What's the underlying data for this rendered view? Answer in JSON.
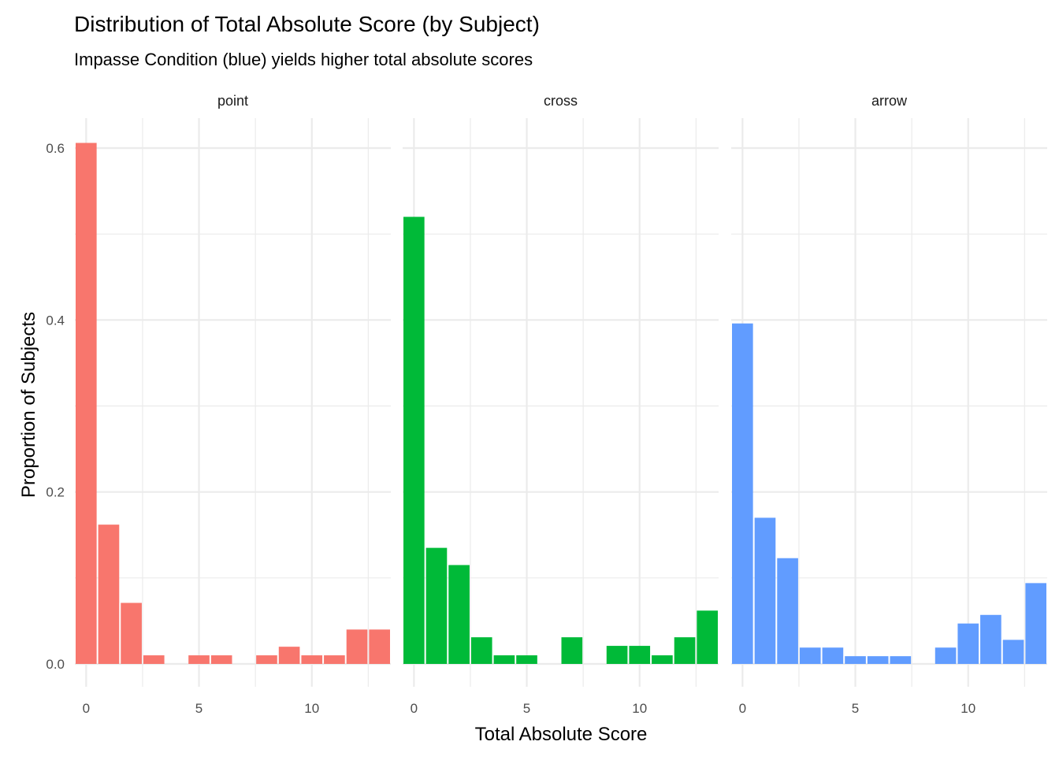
{
  "chart_data": {
    "type": "bar",
    "title": "Distribution of Total Absolute Score (by Subject)",
    "subtitle": "Impasse Condition (blue) yields higher total absolute scores",
    "xlabel": "Total Absolute Score",
    "ylabel": "Proportion of Subjects",
    "xlim": [
      -0.5,
      13.5
    ],
    "ylim": [
      0,
      0.6
    ],
    "x_ticks": [
      0,
      5,
      10
    ],
    "y_ticks": [
      0.0,
      0.2,
      0.4,
      0.6
    ],
    "y_tick_labels": [
      "0.0",
      "0.2",
      "0.4",
      "0.6"
    ],
    "grid": true,
    "facets": [
      {
        "name": "point",
        "color": "#F8766D",
        "x": [
          0,
          1,
          2,
          3,
          5,
          6,
          8,
          9,
          10,
          11,
          12,
          13
        ],
        "values": [
          0.606,
          0.162,
          0.071,
          0.01,
          0.01,
          0.01,
          0.01,
          0.02,
          0.01,
          0.01,
          0.04,
          0.04
        ]
      },
      {
        "name": "cross",
        "color": "#00BA38",
        "x": [
          0,
          1,
          2,
          3,
          4,
          5,
          7,
          9,
          10,
          11,
          12,
          13
        ],
        "values": [
          0.52,
          0.135,
          0.115,
          0.031,
          0.01,
          0.01,
          0.031,
          0.021,
          0.021,
          0.01,
          0.031,
          0.062
        ]
      },
      {
        "name": "arrow",
        "color": "#619CFF",
        "x": [
          0,
          1,
          2,
          3,
          4,
          5,
          6,
          7,
          9,
          10,
          11,
          12,
          13
        ],
        "values": [
          0.396,
          0.17,
          0.123,
          0.019,
          0.019,
          0.009,
          0.009,
          0.009,
          0.019,
          0.047,
          0.057,
          0.028,
          0.094
        ]
      }
    ]
  }
}
